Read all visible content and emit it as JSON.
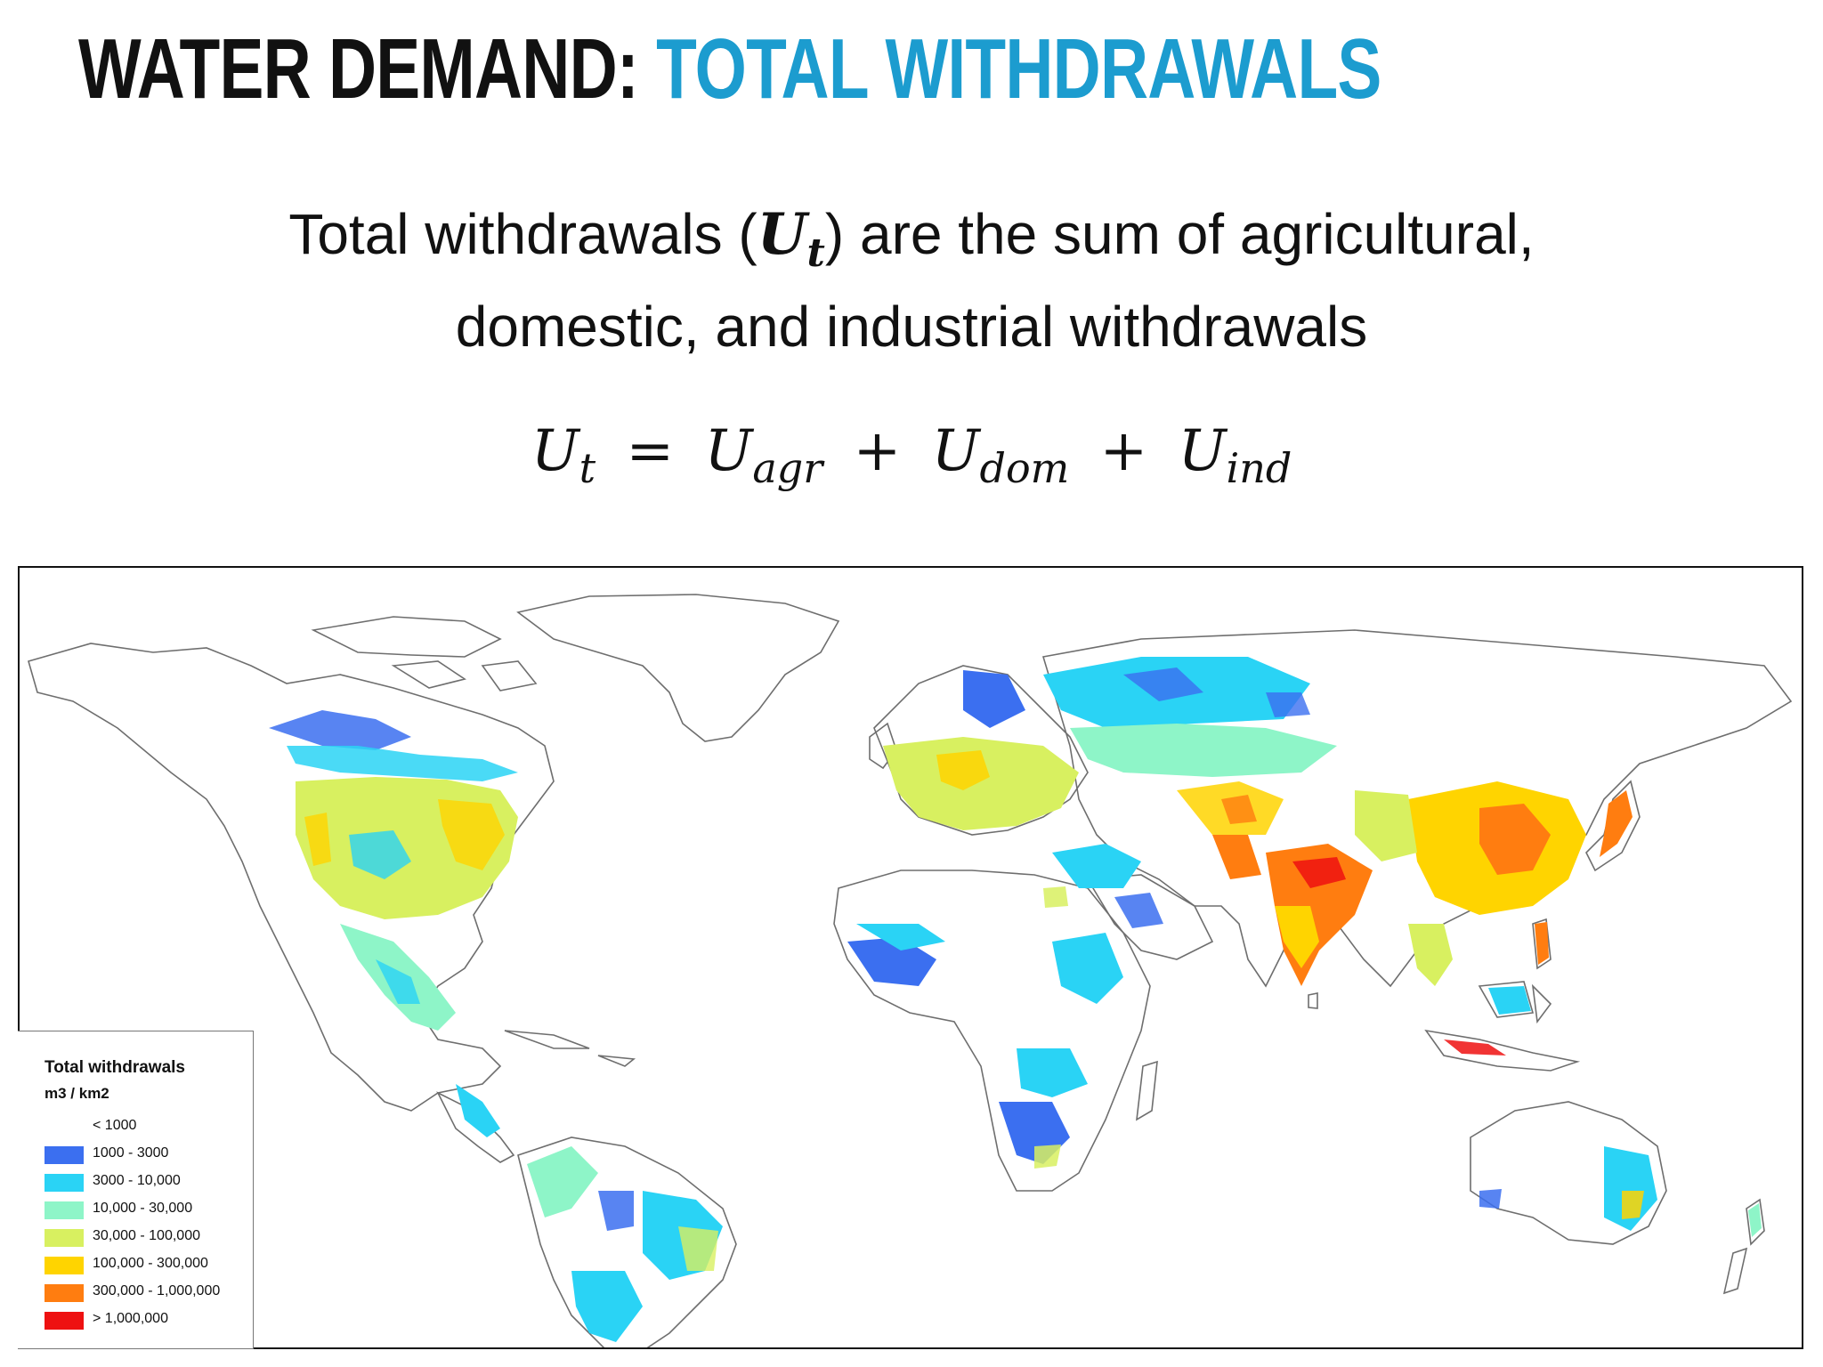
{
  "slide": {
    "title_part1": "WATER DEMAND:",
    "title_part2": "TOTAL WITHDRAWALS",
    "subtitle_line1_before": "Total withdrawals (",
    "subtitle_var": "U",
    "subtitle_var_sub": "t",
    "subtitle_line1_after": ") are the sum of agricultural,",
    "subtitle_line2": "domestic, and industrial withdrawals"
  },
  "equation": {
    "lhs": "U",
    "lhs_sub": "t",
    "eq": "=",
    "term1": "U",
    "term1_sub": "agr",
    "plus1": "+",
    "term2": "U",
    "term2_sub": "dom",
    "plus2": "+",
    "term3": "U",
    "term3_sub": "ind"
  },
  "legend": {
    "title": "Total withdrawals",
    "unit": "m3 / km2",
    "classes": [
      {
        "label": "< 1000",
        "color": "#ffffff"
      },
      {
        "label": "1000 - 3000",
        "color": "#3b6ff0"
      },
      {
        "label": "3000 - 10,000",
        "color": "#2ad3f5"
      },
      {
        "label": "10,000 - 30,000",
        "color": "#8ef5c8"
      },
      {
        "label": "30,000 - 100,000",
        "color": "#d8f060"
      },
      {
        "label": "100,000 - 300,000",
        "color": "#ffd400"
      },
      {
        "label": "300,000 - 1,000,000",
        "color": "#ff7d10"
      },
      {
        "label": "> 1,000,000",
        "color": "#ee1111"
      }
    ]
  },
  "colors": {
    "title_accent": "#1c9ccf",
    "land_outline": "#6e6e6e"
  }
}
